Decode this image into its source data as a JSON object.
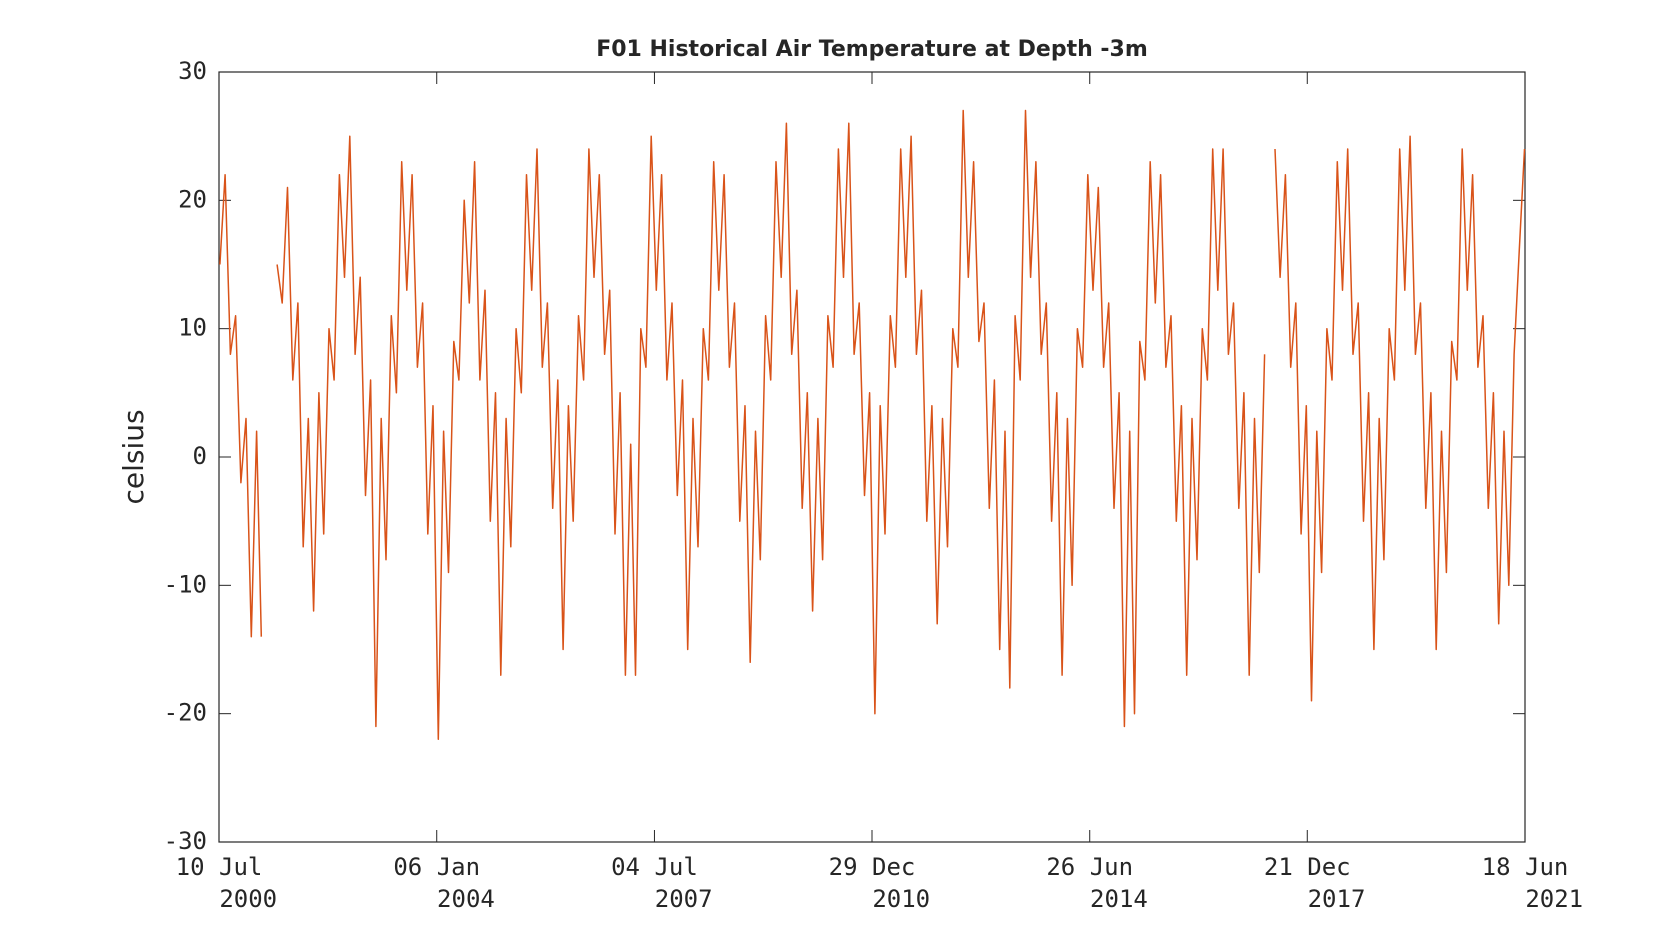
{
  "chart_data": {
    "type": "line",
    "title": "F01 Historical Air Temperature at Depth -3m",
    "y_label": "celsius",
    "xlim": [
      "2000-07-10",
      "2021-06-18"
    ],
    "xticks": [
      {
        "value": "2000-07-10",
        "label": "10 Jul 2000"
      },
      {
        "value": "2004-01-06",
        "label": "06 Jan 2004"
      },
      {
        "value": "2007-07-04",
        "label": "04 Jul 2007"
      },
      {
        "value": "2010-12-29",
        "label": "29 Dec 2010"
      },
      {
        "value": "2014-06-26",
        "label": "26 Jun 2014"
      },
      {
        "value": "2017-12-21",
        "label": "21 Dec 2017"
      },
      {
        "value": "2021-06-18",
        "label": "18 Jun 2021"
      }
    ],
    "ylim": [
      -30,
      30
    ],
    "yticks": [
      -30,
      -20,
      -10,
      0,
      10,
      20,
      30
    ],
    "grid": false,
    "x": [
      "2000-07-15",
      "2000-08-15",
      "2000-09-15",
      "2000-10-15",
      "2000-11-15",
      "2000-12-15",
      "2001-01-15",
      "2001-02-15",
      "2001-03-15",
      "2001-04-15",
      "2001-05-15",
      "2001-06-15",
      "2001-07-15",
      "2001-08-15",
      "2001-09-15",
      "2001-10-15",
      "2001-11-15",
      "2001-12-15",
      "2002-01-15",
      "2002-02-15",
      "2002-03-15",
      "2002-04-15",
      "2002-05-15",
      "2002-06-15",
      "2002-07-15",
      "2002-08-15",
      "2002-09-15",
      "2002-10-15",
      "2002-11-15",
      "2002-12-15",
      "2003-01-15",
      "2003-02-15",
      "2003-03-15",
      "2003-04-15",
      "2003-05-15",
      "2003-06-15",
      "2003-07-15",
      "2003-08-15",
      "2003-09-15",
      "2003-10-15",
      "2003-11-15",
      "2003-12-15",
      "2004-01-15",
      "2004-02-15",
      "2004-03-15",
      "2004-04-15",
      "2004-05-15",
      "2004-06-15",
      "2004-07-15",
      "2004-08-15",
      "2004-09-15",
      "2004-10-15",
      "2004-11-15",
      "2004-12-15",
      "2005-01-15",
      "2005-02-15",
      "2005-03-15",
      "2005-04-15",
      "2005-05-15",
      "2005-06-15",
      "2005-07-15",
      "2005-08-15",
      "2005-09-15",
      "2005-10-15",
      "2005-11-15",
      "2005-12-15",
      "2006-01-15",
      "2006-02-15",
      "2006-03-15",
      "2006-04-15",
      "2006-05-15",
      "2006-06-15",
      "2006-07-15",
      "2006-08-15",
      "2006-09-15",
      "2006-10-15",
      "2006-11-15",
      "2006-12-15",
      "2007-01-15",
      "2007-02-15",
      "2007-03-15",
      "2007-04-15",
      "2007-05-15",
      "2007-06-15",
      "2007-07-15",
      "2007-08-15",
      "2007-09-15",
      "2007-10-15",
      "2007-11-15",
      "2007-12-15",
      "2008-01-15",
      "2008-02-15",
      "2008-03-15",
      "2008-04-15",
      "2008-05-15",
      "2008-06-15",
      "2008-07-15",
      "2008-08-15",
      "2008-09-15",
      "2008-10-15",
      "2008-11-15",
      "2008-12-15",
      "2009-01-15",
      "2009-02-15",
      "2009-03-15",
      "2009-04-15",
      "2009-05-15",
      "2009-06-15",
      "2009-07-15",
      "2009-08-15",
      "2009-09-15",
      "2009-10-15",
      "2009-11-15",
      "2009-12-15",
      "2010-01-15",
      "2010-02-15",
      "2010-03-15",
      "2010-04-15",
      "2010-05-15",
      "2010-06-15",
      "2010-07-15",
      "2010-08-15",
      "2010-09-15",
      "2010-10-15",
      "2010-11-15",
      "2010-12-15",
      "2011-01-15",
      "2011-02-15",
      "2011-03-15",
      "2011-04-15",
      "2011-05-15",
      "2011-06-15",
      "2011-07-15",
      "2011-08-15",
      "2011-09-15",
      "2011-10-15",
      "2011-11-15",
      "2011-12-15",
      "2012-01-15",
      "2012-02-15",
      "2012-03-15",
      "2012-04-15",
      "2012-05-15",
      "2012-06-15",
      "2012-07-15",
      "2012-08-15",
      "2012-09-15",
      "2012-10-15",
      "2012-11-15",
      "2012-12-15",
      "2013-01-15",
      "2013-02-15",
      "2013-03-15",
      "2013-04-15",
      "2013-05-15",
      "2013-06-15",
      "2013-07-15",
      "2013-08-15",
      "2013-09-15",
      "2013-10-15",
      "2013-11-15",
      "2013-12-15",
      "2014-01-15",
      "2014-02-15",
      "2014-03-15",
      "2014-04-15",
      "2014-05-15",
      "2014-06-15",
      "2014-07-15",
      "2014-08-15",
      "2014-09-15",
      "2014-10-15",
      "2014-11-15",
      "2014-12-15",
      "2015-01-15",
      "2015-02-15",
      "2015-03-15",
      "2015-04-15",
      "2015-05-15",
      "2015-06-15",
      "2015-07-15",
      "2015-08-15",
      "2015-09-15",
      "2015-10-15",
      "2015-11-15",
      "2015-12-15",
      "2016-01-15",
      "2016-02-15",
      "2016-03-15",
      "2016-04-15",
      "2016-05-15",
      "2016-06-15",
      "2016-07-15",
      "2016-08-15",
      "2016-09-15",
      "2016-10-15",
      "2016-11-15",
      "2016-12-15",
      "2017-01-15",
      "2017-02-15",
      "2017-03-15",
      "2017-04-15",
      "2017-05-15",
      "2017-06-15",
      "2017-07-15",
      "2017-08-15",
      "2017-09-15",
      "2017-10-15",
      "2017-11-15",
      "2017-12-15",
      "2018-01-15",
      "2018-02-15",
      "2018-03-15",
      "2018-04-15",
      "2018-05-15",
      "2018-06-15",
      "2018-07-15",
      "2018-08-15",
      "2018-09-15",
      "2018-10-15",
      "2018-11-15",
      "2018-12-15",
      "2019-01-15",
      "2019-02-15",
      "2019-03-15",
      "2019-04-15",
      "2019-05-15",
      "2019-06-15",
      "2019-07-15",
      "2019-08-15",
      "2019-09-15",
      "2019-10-15",
      "2019-11-15",
      "2019-12-15",
      "2020-01-15",
      "2020-02-15",
      "2020-03-15",
      "2020-04-15",
      "2020-05-15",
      "2020-06-15",
      "2020-07-15",
      "2020-08-15",
      "2020-09-15",
      "2020-10-15",
      "2020-11-15",
      "2020-12-15",
      "2021-01-15",
      "2021-02-15",
      "2021-03-15",
      "2021-04-15",
      "2021-05-15",
      "2021-06-15"
    ],
    "series": [
      {
        "name": "F01",
        "color": "#d95319",
        "values": [
          15,
          22,
          8,
          11,
          -2,
          3,
          -14,
          2,
          -14,
          null,
          null,
          15,
          12,
          21,
          6,
          12,
          -7,
          3,
          -12,
          5,
          -6,
          10,
          6,
          22,
          14,
          25,
          8,
          14,
          -3,
          6,
          -21,
          3,
          -8,
          11,
          5,
          23,
          13,
          22,
          7,
          12,
          -6,
          4,
          -22,
          2,
          -9,
          9,
          6,
          20,
          12,
          23,
          6,
          13,
          -5,
          5,
          -17,
          3,
          -7,
          10,
          5,
          22,
          13,
          24,
          7,
          12,
          -4,
          6,
          -15,
          4,
          -5,
          11,
          6,
          24,
          14,
          22,
          8,
          13,
          -6,
          5,
          -17,
          1,
          -17,
          10,
          7,
          25,
          13,
          22,
          6,
          12,
          -3,
          6,
          -15,
          3,
          -7,
          10,
          6,
          23,
          13,
          22,
          7,
          12,
          -5,
          4,
          -16,
          2,
          -8,
          11,
          6,
          23,
          14,
          26,
          8,
          13,
          -4,
          5,
          -12,
          3,
          -8,
          11,
          7,
          24,
          14,
          26,
          8,
          12,
          -3,
          5,
          -20,
          4,
          -6,
          11,
          7,
          24,
          14,
          25,
          8,
          13,
          -5,
          4,
          -13,
          3,
          -7,
          10,
          7,
          27,
          14,
          23,
          9,
          12,
          -4,
          6,
          -15,
          2,
          -18,
          11,
          6,
          27,
          14,
          23,
          8,
          12,
          -5,
          5,
          -17,
          3,
          -10,
          10,
          7,
          22,
          13,
          21,
          7,
          12,
          -4,
          5,
          -21,
          2,
          -20,
          9,
          6,
          23,
          12,
          22,
          7,
          11,
          -5,
          4,
          -17,
          3,
          -8,
          10,
          6,
          24,
          13,
          24,
          8,
          12,
          -4,
          5,
          -17,
          3,
          -9,
          8,
          null,
          24,
          14,
          22,
          7,
          12,
          -6,
          4,
          -19,
          2,
          -9,
          10,
          6,
          23,
          13,
          24,
          8,
          12,
          -5,
          5,
          -15,
          3,
          -8,
          10,
          6,
          24,
          13,
          25,
          8,
          12,
          -4,
          5,
          -15,
          2,
          -9,
          9,
          6,
          24,
          13,
          22,
          7,
          11,
          -4,
          5,
          -13,
          2,
          -10,
          8,
          16,
          24
        ]
      }
    ]
  }
}
